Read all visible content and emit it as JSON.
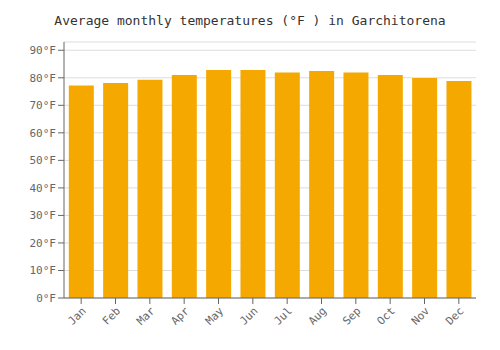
{
  "chart_data": {
    "type": "bar",
    "title": "Average monthly temperatures (°F ) in Garchitorena",
    "categories": [
      "Jan",
      "Feb",
      "Mar",
      "Apr",
      "May",
      "Jun",
      "Jul",
      "Aug",
      "Sep",
      "Oct",
      "Nov",
      "Dec"
    ],
    "values": [
      77.2,
      78.1,
      79.3,
      81.0,
      82.8,
      82.8,
      81.9,
      82.5,
      81.9,
      81.0,
      79.9,
      78.8
    ],
    "color": "#F5A800",
    "ylim": [
      0,
      93
    ],
    "yticks": [
      {
        "value": 0,
        "label": "0°F"
      },
      {
        "value": 10,
        "label": "10°F"
      },
      {
        "value": 20,
        "label": "20°F"
      },
      {
        "value": 30,
        "label": "30°F"
      },
      {
        "value": 40,
        "label": "40°F"
      },
      {
        "value": 50,
        "label": "50°F"
      },
      {
        "value": 60,
        "label": "60°F"
      },
      {
        "value": 70,
        "label": "70°F"
      },
      {
        "value": 80,
        "label": "80°F"
      },
      {
        "value": 90,
        "label": "90°F"
      }
    ],
    "grid": true
  }
}
